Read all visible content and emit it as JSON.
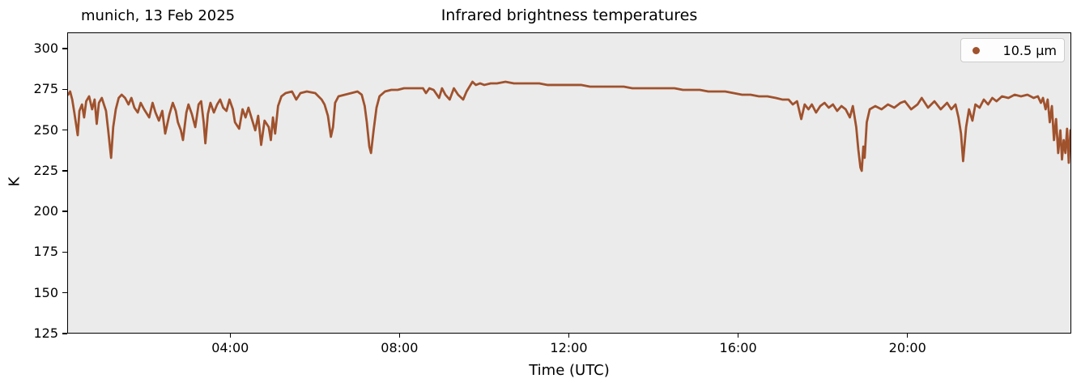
{
  "colors": {
    "figure_background": "#FFFFFF",
    "axes_background": "#EBEBEB",
    "spine": "#000000",
    "series": "#A0522D",
    "legend_background": "#FDFDFD",
    "legend_border": "#CCCCCC",
    "text": "#000000"
  },
  "chart_data": {
    "type": "scatter",
    "title": "Infrared brightness temperatures",
    "subtitle": "munich, 13 Feb 2025",
    "xlabel": "Time (UTC)",
    "ylabel": "K",
    "grid": false,
    "legend_position": "upper right",
    "xlim": [
      0.15,
      23.87
    ],
    "ylim": [
      125,
      310
    ],
    "x_ticks": [
      {
        "value": 4,
        "label": "04:00"
      },
      {
        "value": 8,
        "label": "08:00"
      },
      {
        "value": 12,
        "label": "12:00"
      },
      {
        "value": 16,
        "label": "16:00"
      },
      {
        "value": 20,
        "label": "20:00"
      }
    ],
    "y_ticks": [
      {
        "value": 300,
        "label": "300"
      },
      {
        "value": 275,
        "label": "275"
      },
      {
        "value": 250,
        "label": "250"
      },
      {
        "value": 225,
        "label": "225"
      },
      {
        "value": 200,
        "label": "200"
      },
      {
        "value": 175,
        "label": "175"
      },
      {
        "value": 150,
        "label": "150"
      },
      {
        "value": 125,
        "label": "125"
      }
    ],
    "series": [
      {
        "name": "10.5 μm",
        "color": "#A0522D",
        "marker": "dot",
        "x_unit": "hours (UTC)",
        "y_unit": "K",
        "points": [
          [
            0.15,
            272
          ],
          [
            0.2,
            274
          ],
          [
            0.25,
            269
          ],
          [
            0.3,
            261
          ],
          [
            0.35,
            252
          ],
          [
            0.38,
            247
          ],
          [
            0.42,
            262
          ],
          [
            0.48,
            266
          ],
          [
            0.53,
            258
          ],
          [
            0.58,
            268
          ],
          [
            0.65,
            271
          ],
          [
            0.72,
            263
          ],
          [
            0.78,
            269
          ],
          [
            0.83,
            254
          ],
          [
            0.88,
            267
          ],
          [
            0.95,
            270
          ],
          [
            1.0,
            266
          ],
          [
            1.05,
            262
          ],
          [
            1.1,
            250
          ],
          [
            1.14,
            240
          ],
          [
            1.17,
            233
          ],
          [
            1.22,
            252
          ],
          [
            1.28,
            263
          ],
          [
            1.35,
            270
          ],
          [
            1.42,
            272
          ],
          [
            1.5,
            270
          ],
          [
            1.58,
            266
          ],
          [
            1.65,
            270
          ],
          [
            1.72,
            264
          ],
          [
            1.8,
            261
          ],
          [
            1.87,
            267
          ],
          [
            1.95,
            263
          ],
          [
            2.07,
            258
          ],
          [
            2.15,
            267
          ],
          [
            2.22,
            261
          ],
          [
            2.3,
            256
          ],
          [
            2.38,
            262
          ],
          [
            2.45,
            248
          ],
          [
            2.55,
            260
          ],
          [
            2.63,
            267
          ],
          [
            2.7,
            262
          ],
          [
            2.75,
            255
          ],
          [
            2.82,
            250
          ],
          [
            2.87,
            244
          ],
          [
            2.95,
            261
          ],
          [
            3.0,
            266
          ],
          [
            3.08,
            260
          ],
          [
            3.16,
            252
          ],
          [
            3.24,
            266
          ],
          [
            3.3,
            268
          ],
          [
            3.36,
            255
          ],
          [
            3.4,
            242
          ],
          [
            3.46,
            260
          ],
          [
            3.52,
            267
          ],
          [
            3.6,
            261
          ],
          [
            3.68,
            266
          ],
          [
            3.75,
            269
          ],
          [
            3.82,
            264
          ],
          [
            3.9,
            262
          ],
          [
            3.97,
            269
          ],
          [
            4.05,
            263
          ],
          [
            4.1,
            255
          ],
          [
            4.2,
            251
          ],
          [
            4.28,
            263
          ],
          [
            4.35,
            258
          ],
          [
            4.42,
            264
          ],
          [
            4.5,
            257
          ],
          [
            4.58,
            250
          ],
          [
            4.65,
            259
          ],
          [
            4.72,
            241
          ],
          [
            4.8,
            256
          ],
          [
            4.9,
            252
          ],
          [
            4.95,
            244
          ],
          [
            5.0,
            258
          ],
          [
            5.05,
            248
          ],
          [
            5.12,
            265
          ],
          [
            5.2,
            271
          ],
          [
            5.3,
            273
          ],
          [
            5.45,
            274
          ],
          [
            5.55,
            269
          ],
          [
            5.65,
            273
          ],
          [
            5.8,
            274
          ],
          [
            6.0,
            273
          ],
          [
            6.15,
            269
          ],
          [
            6.22,
            266
          ],
          [
            6.3,
            259
          ],
          [
            6.37,
            246
          ],
          [
            6.42,
            252
          ],
          [
            6.47,
            267
          ],
          [
            6.55,
            271
          ],
          [
            6.7,
            272
          ],
          [
            6.85,
            273
          ],
          [
            7.0,
            274
          ],
          [
            7.1,
            272
          ],
          [
            7.17,
            265
          ],
          [
            7.22,
            255
          ],
          [
            7.28,
            240
          ],
          [
            7.32,
            236
          ],
          [
            7.38,
            250
          ],
          [
            7.45,
            264
          ],
          [
            7.52,
            271
          ],
          [
            7.65,
            274
          ],
          [
            7.8,
            275
          ],
          [
            7.95,
            275
          ],
          [
            8.1,
            276
          ],
          [
            8.25,
            276
          ],
          [
            8.4,
            276
          ],
          [
            8.55,
            276
          ],
          [
            8.62,
            273
          ],
          [
            8.7,
            276
          ],
          [
            8.8,
            275
          ],
          [
            8.93,
            270
          ],
          [
            9.0,
            276
          ],
          [
            9.08,
            272
          ],
          [
            9.18,
            269
          ],
          [
            9.28,
            276
          ],
          [
            9.38,
            272
          ],
          [
            9.5,
            269
          ],
          [
            9.58,
            274
          ],
          [
            9.65,
            277
          ],
          [
            9.72,
            280
          ],
          [
            9.8,
            278
          ],
          [
            9.9,
            279
          ],
          [
            10.0,
            278
          ],
          [
            10.15,
            279
          ],
          [
            10.3,
            279
          ],
          [
            10.5,
            280
          ],
          [
            10.7,
            279
          ],
          [
            10.9,
            279
          ],
          [
            11.1,
            279
          ],
          [
            11.3,
            279
          ],
          [
            11.5,
            278
          ],
          [
            11.7,
            278
          ],
          [
            11.9,
            278
          ],
          [
            12.1,
            278
          ],
          [
            12.3,
            278
          ],
          [
            12.5,
            277
          ],
          [
            12.7,
            277
          ],
          [
            12.9,
            277
          ],
          [
            13.1,
            277
          ],
          [
            13.3,
            277
          ],
          [
            13.5,
            276
          ],
          [
            13.7,
            276
          ],
          [
            13.9,
            276
          ],
          [
            14.1,
            276
          ],
          [
            14.3,
            276
          ],
          [
            14.5,
            276
          ],
          [
            14.7,
            275
          ],
          [
            14.9,
            275
          ],
          [
            15.1,
            275
          ],
          [
            15.3,
            274
          ],
          [
            15.5,
            274
          ],
          [
            15.7,
            274
          ],
          [
            15.9,
            273
          ],
          [
            16.1,
            272
          ],
          [
            16.3,
            272
          ],
          [
            16.5,
            271
          ],
          [
            16.7,
            271
          ],
          [
            16.9,
            270
          ],
          [
            17.05,
            269
          ],
          [
            17.2,
            269
          ],
          [
            17.3,
            266
          ],
          [
            17.4,
            268
          ],
          [
            17.5,
            257
          ],
          [
            17.58,
            266
          ],
          [
            17.67,
            263
          ],
          [
            17.75,
            266
          ],
          [
            17.85,
            261
          ],
          [
            17.95,
            265
          ],
          [
            18.05,
            267
          ],
          [
            18.15,
            264
          ],
          [
            18.25,
            266
          ],
          [
            18.35,
            262
          ],
          [
            18.45,
            265
          ],
          [
            18.55,
            263
          ],
          [
            18.65,
            258
          ],
          [
            18.72,
            265
          ],
          [
            18.8,
            252
          ],
          [
            18.85,
            238
          ],
          [
            18.9,
            227
          ],
          [
            18.93,
            225
          ],
          [
            18.97,
            240
          ],
          [
            19.0,
            233
          ],
          [
            19.05,
            255
          ],
          [
            19.12,
            263
          ],
          [
            19.25,
            265
          ],
          [
            19.4,
            263
          ],
          [
            19.55,
            266
          ],
          [
            19.7,
            264
          ],
          [
            19.85,
            267
          ],
          [
            19.95,
            268
          ],
          [
            20.1,
            263
          ],
          [
            20.25,
            266
          ],
          [
            20.35,
            270
          ],
          [
            20.5,
            264
          ],
          [
            20.65,
            268
          ],
          [
            20.8,
            263
          ],
          [
            20.95,
            267
          ],
          [
            21.05,
            263
          ],
          [
            21.15,
            266
          ],
          [
            21.22,
            258
          ],
          [
            21.28,
            248
          ],
          [
            21.33,
            231
          ],
          [
            21.4,
            252
          ],
          [
            21.47,
            263
          ],
          [
            21.55,
            256
          ],
          [
            21.62,
            266
          ],
          [
            21.72,
            264
          ],
          [
            21.82,
            269
          ],
          [
            21.92,
            266
          ],
          [
            22.02,
            270
          ],
          [
            22.12,
            268
          ],
          [
            22.25,
            271
          ],
          [
            22.4,
            270
          ],
          [
            22.55,
            272
          ],
          [
            22.7,
            271
          ],
          [
            22.85,
            272
          ],
          [
            23.0,
            270
          ],
          [
            23.1,
            271
          ],
          [
            23.17,
            267
          ],
          [
            23.22,
            270
          ],
          [
            23.28,
            263
          ],
          [
            23.33,
            269
          ],
          [
            23.38,
            255
          ],
          [
            23.43,
            265
          ],
          [
            23.48,
            244
          ],
          [
            23.53,
            257
          ],
          [
            23.58,
            236
          ],
          [
            23.63,
            250
          ],
          [
            23.67,
            232
          ],
          [
            23.71,
            244
          ],
          [
            23.75,
            236
          ],
          [
            23.79,
            251
          ],
          [
            23.83,
            230
          ],
          [
            23.86,
            246
          ],
          [
            23.87,
            250
          ]
        ]
      }
    ]
  }
}
